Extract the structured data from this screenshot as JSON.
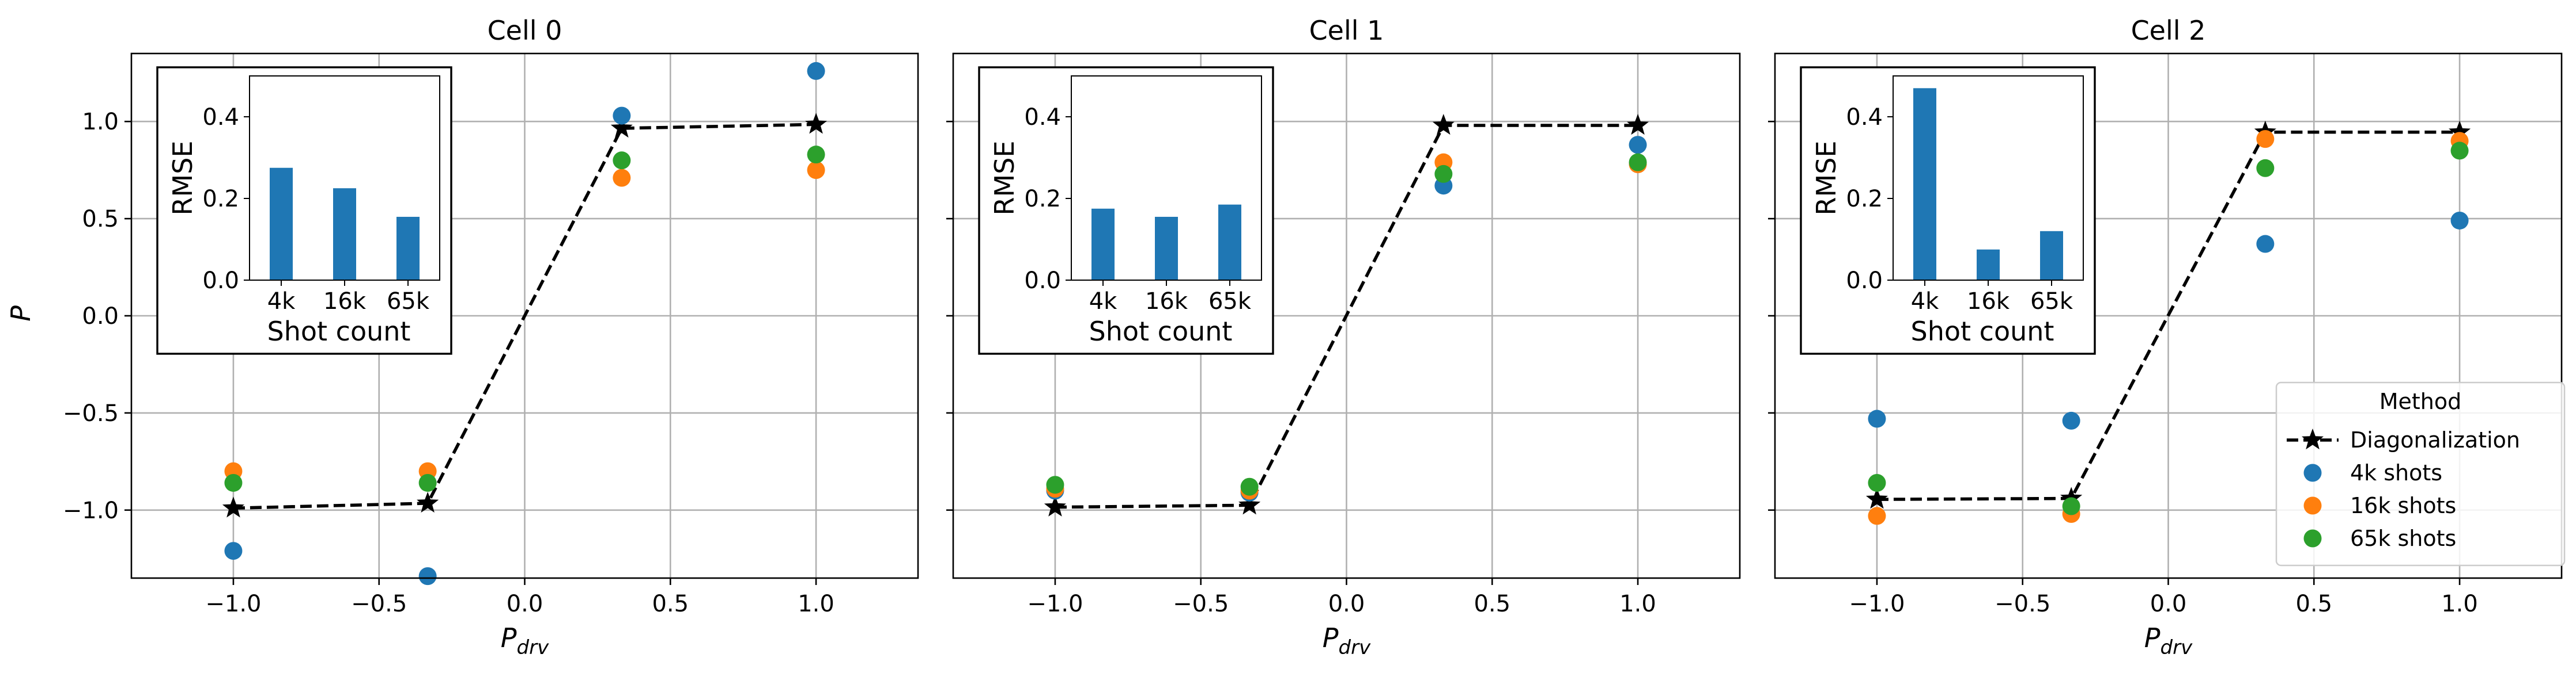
{
  "figure": {
    "ylabel": "P",
    "xlabel_main": "P",
    "xlabel_sub": "drv"
  },
  "chart_data": [
    {
      "type": "scatter",
      "title": "Cell 0",
      "xlim": [
        -1.35,
        1.35
      ],
      "ylim": [
        -1.35,
        1.35
      ],
      "xticks": [
        -1.0,
        -0.5,
        0.0,
        0.5,
        1.0
      ],
      "xtick_labels": [
        "−1.0",
        "−0.5",
        "0.0",
        "0.5",
        "1.0"
      ],
      "yticks": [
        -1.0,
        -0.5,
        0.0,
        0.5,
        1.0
      ],
      "ytick_labels": [
        "−1.0",
        "−0.5",
        "0.0",
        "0.5",
        "1.0"
      ],
      "grid": true,
      "x": [
        -1.0,
        -0.333,
        0.333,
        1.0
      ],
      "series": [
        {
          "name": "Diagonalization",
          "style": "dashed-line-star",
          "color": "#000000",
          "values": [
            -0.99,
            -0.965,
            0.965,
            0.985
          ]
        },
        {
          "name": "4k shots",
          "color": "#1f77b4",
          "values": [
            -1.21,
            -1.34,
            1.03,
            1.26
          ]
        },
        {
          "name": "16k shots",
          "color": "#ff7f0e",
          "values": [
            -0.8,
            -0.8,
            0.71,
            0.75
          ]
        },
        {
          "name": "65k shots",
          "color": "#2ca02c",
          "values": [
            -0.86,
            -0.86,
            0.8,
            0.83
          ]
        }
      ],
      "inset": {
        "type": "bar",
        "categories": [
          "4k",
          "16k",
          "65k"
        ],
        "values": [
          0.275,
          0.225,
          0.155
        ],
        "xlabel": "Shot count",
        "ylabel": "RMSE",
        "ylim": [
          0,
          0.5
        ],
        "yticks": [
          0.0,
          0.2,
          0.4
        ],
        "ytick_labels": [
          "0.0",
          "0.2",
          "0.4"
        ],
        "color": "#1f77b4"
      }
    },
    {
      "type": "scatter",
      "title": "Cell 1",
      "xlim": [
        -1.35,
        1.35
      ],
      "ylim": [
        -1.35,
        1.35
      ],
      "xticks": [
        -1.0,
        -0.5,
        0.0,
        0.5,
        1.0
      ],
      "xtick_labels": [
        "−1.0",
        "−0.5",
        "0.0",
        "0.5",
        "1.0"
      ],
      "yticks": [
        -1.0,
        -0.5,
        0.0,
        0.5,
        1.0
      ],
      "ytick_labels": [
        "",
        "",
        "",
        "",
        ""
      ],
      "grid": true,
      "x": [
        -1.0,
        -0.333,
        0.333,
        1.0
      ],
      "series": [
        {
          "name": "Diagonalization",
          "style": "dashed-line-star",
          "color": "#000000",
          "values": [
            -0.985,
            -0.975,
            0.98,
            0.98
          ]
        },
        {
          "name": "4k shots",
          "color": "#1f77b4",
          "values": [
            -0.9,
            -0.91,
            0.67,
            0.88
          ]
        },
        {
          "name": "16k shots",
          "color": "#ff7f0e",
          "values": [
            -0.89,
            -0.9,
            0.79,
            0.78
          ]
        },
        {
          "name": "65k shots",
          "color": "#2ca02c",
          "values": [
            -0.87,
            -0.88,
            0.73,
            0.79
          ]
        }
      ],
      "inset": {
        "type": "bar",
        "categories": [
          "4k",
          "16k",
          "65k"
        ],
        "values": [
          0.175,
          0.155,
          0.185
        ],
        "xlabel": "Shot count",
        "ylabel": "RMSE",
        "ylim": [
          0,
          0.5
        ],
        "yticks": [
          0.0,
          0.2,
          0.4
        ],
        "ytick_labels": [
          "0.0",
          "0.2",
          "0.4"
        ],
        "color": "#1f77b4"
      }
    },
    {
      "type": "scatter",
      "title": "Cell 2",
      "xlim": [
        -1.35,
        1.35
      ],
      "ylim": [
        -1.35,
        1.35
      ],
      "xticks": [
        -1.0,
        -0.5,
        0.0,
        0.5,
        1.0
      ],
      "xtick_labels": [
        "−1.0",
        "−0.5",
        "0.0",
        "0.5",
        "1.0"
      ],
      "yticks": [
        -1.0,
        -0.5,
        0.0,
        0.5,
        1.0
      ],
      "ytick_labels": [
        "",
        "",
        "",
        "",
        ""
      ],
      "grid": true,
      "x": [
        -1.0,
        -0.333,
        0.333,
        1.0
      ],
      "series": [
        {
          "name": "Diagonalization",
          "style": "dashed-line-star",
          "color": "#000000",
          "values": [
            -0.945,
            -0.94,
            0.945,
            0.945
          ]
        },
        {
          "name": "4k shots",
          "color": "#1f77b4",
          "values": [
            -0.53,
            -0.54,
            0.37,
            0.49
          ]
        },
        {
          "name": "16k shots",
          "color": "#ff7f0e",
          "values": [
            -1.03,
            -1.02,
            0.91,
            0.9
          ]
        },
        {
          "name": "65k shots",
          "color": "#2ca02c",
          "values": [
            -0.86,
            -0.98,
            0.76,
            0.85
          ]
        }
      ],
      "inset": {
        "type": "bar",
        "categories": [
          "4k",
          "16k",
          "65k"
        ],
        "values": [
          0.47,
          0.075,
          0.12
        ],
        "xlabel": "Shot count",
        "ylabel": "RMSE",
        "ylim": [
          0,
          0.5
        ],
        "yticks": [
          0.0,
          0.2,
          0.4
        ],
        "ytick_labels": [
          "0.0",
          "0.2",
          "0.4"
        ],
        "color": "#1f77b4"
      },
      "legend": {
        "title": "Method",
        "placement": "lower-right",
        "entries": [
          "Diagonalization",
          "4k shots",
          "16k shots",
          "65k shots"
        ]
      }
    }
  ]
}
